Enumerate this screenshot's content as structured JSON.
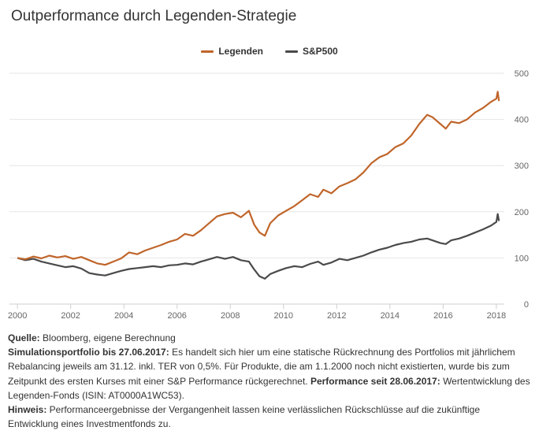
{
  "title": "Outperformance durch Legenden-Strategie",
  "colors": {
    "legenden": "#c0652a",
    "sp500": "#4a4a4a",
    "grid": "#e6e6e6"
  },
  "chart_data": {
    "type": "line",
    "title": "Outperformance durch Legenden-Strategie",
    "xlabel": "",
    "ylabel": "",
    "xlim": [
      1999.7,
      2018.3
    ],
    "ylim": [
      0,
      500
    ],
    "x_ticks": [
      "2000",
      "2002",
      "2004",
      "2006",
      "2008",
      "2010",
      "2012",
      "2014",
      "2016",
      "2018"
    ],
    "y_ticks": [
      "0",
      "100",
      "200",
      "300",
      "400",
      "500"
    ],
    "legend_position": "top-center",
    "grid": true,
    "series": [
      {
        "name": "Legenden",
        "color": "#c0652a",
        "points": [
          [
            2000.0,
            100
          ],
          [
            2000.3,
            97
          ],
          [
            2000.6,
            103
          ],
          [
            2000.9,
            99
          ],
          [
            2001.2,
            105
          ],
          [
            2001.5,
            101
          ],
          [
            2001.8,
            104
          ],
          [
            2002.1,
            98
          ],
          [
            2002.4,
            102
          ],
          [
            2002.7,
            95
          ],
          [
            2003.0,
            88
          ],
          [
            2003.3,
            85
          ],
          [
            2003.6,
            92
          ],
          [
            2003.9,
            99
          ],
          [
            2004.2,
            112
          ],
          [
            2004.5,
            108
          ],
          [
            2004.8,
            116
          ],
          [
            2005.1,
            122
          ],
          [
            2005.4,
            128
          ],
          [
            2005.7,
            135
          ],
          [
            2006.0,
            140
          ],
          [
            2006.3,
            152
          ],
          [
            2006.6,
            148
          ],
          [
            2006.9,
            160
          ],
          [
            2007.2,
            175
          ],
          [
            2007.5,
            190
          ],
          [
            2007.8,
            195
          ],
          [
            2008.1,
            198
          ],
          [
            2008.4,
            188
          ],
          [
            2008.7,
            202
          ],
          [
            2008.9,
            172
          ],
          [
            2009.1,
            155
          ],
          [
            2009.3,
            148
          ],
          [
            2009.5,
            175
          ],
          [
            2009.8,
            192
          ],
          [
            2010.1,
            202
          ],
          [
            2010.4,
            212
          ],
          [
            2010.7,
            225
          ],
          [
            2011.0,
            238
          ],
          [
            2011.3,
            232
          ],
          [
            2011.5,
            248
          ],
          [
            2011.8,
            240
          ],
          [
            2012.1,
            255
          ],
          [
            2012.4,
            262
          ],
          [
            2012.7,
            270
          ],
          [
            2013.0,
            285
          ],
          [
            2013.3,
            305
          ],
          [
            2013.6,
            318
          ],
          [
            2013.9,
            325
          ],
          [
            2014.2,
            340
          ],
          [
            2014.5,
            348
          ],
          [
            2014.8,
            365
          ],
          [
            2015.1,
            390
          ],
          [
            2015.4,
            410
          ],
          [
            2015.6,
            405
          ],
          [
            2015.9,
            390
          ],
          [
            2016.1,
            380
          ],
          [
            2016.3,
            395
          ],
          [
            2016.6,
            392
          ],
          [
            2016.9,
            400
          ],
          [
            2017.2,
            415
          ],
          [
            2017.5,
            425
          ],
          [
            2017.8,
            438
          ],
          [
            2018.0,
            445
          ],
          [
            2018.05,
            460
          ],
          [
            2018.1,
            440
          ]
        ]
      },
      {
        "name": "S&P500",
        "color": "#4a4a4a",
        "points": [
          [
            2000.0,
            100
          ],
          [
            2000.3,
            95
          ],
          [
            2000.6,
            98
          ],
          [
            2000.9,
            92
          ],
          [
            2001.2,
            88
          ],
          [
            2001.5,
            84
          ],
          [
            2001.8,
            80
          ],
          [
            2002.1,
            82
          ],
          [
            2002.4,
            77
          ],
          [
            2002.7,
            67
          ],
          [
            2003.0,
            64
          ],
          [
            2003.3,
            62
          ],
          [
            2003.6,
            67
          ],
          [
            2003.9,
            72
          ],
          [
            2004.2,
            76
          ],
          [
            2004.5,
            78
          ],
          [
            2004.8,
            80
          ],
          [
            2005.1,
            82
          ],
          [
            2005.4,
            80
          ],
          [
            2005.7,
            84
          ],
          [
            2006.0,
            85
          ],
          [
            2006.3,
            88
          ],
          [
            2006.6,
            86
          ],
          [
            2006.9,
            92
          ],
          [
            2007.2,
            97
          ],
          [
            2007.5,
            102
          ],
          [
            2007.8,
            98
          ],
          [
            2008.1,
            102
          ],
          [
            2008.4,
            95
          ],
          [
            2008.7,
            92
          ],
          [
            2008.9,
            75
          ],
          [
            2009.1,
            60
          ],
          [
            2009.3,
            55
          ],
          [
            2009.5,
            65
          ],
          [
            2009.8,
            72
          ],
          [
            2010.1,
            78
          ],
          [
            2010.4,
            82
          ],
          [
            2010.7,
            80
          ],
          [
            2011.0,
            87
          ],
          [
            2011.3,
            92
          ],
          [
            2011.5,
            85
          ],
          [
            2011.8,
            90
          ],
          [
            2012.1,
            98
          ],
          [
            2012.4,
            95
          ],
          [
            2012.7,
            100
          ],
          [
            2013.0,
            105
          ],
          [
            2013.3,
            112
          ],
          [
            2013.6,
            118
          ],
          [
            2013.9,
            122
          ],
          [
            2014.2,
            128
          ],
          [
            2014.5,
            132
          ],
          [
            2014.8,
            135
          ],
          [
            2015.1,
            140
          ],
          [
            2015.4,
            142
          ],
          [
            2015.6,
            138
          ],
          [
            2015.9,
            132
          ],
          [
            2016.1,
            130
          ],
          [
            2016.3,
            138
          ],
          [
            2016.6,
            142
          ],
          [
            2016.9,
            148
          ],
          [
            2017.2,
            155
          ],
          [
            2017.5,
            162
          ],
          [
            2017.8,
            170
          ],
          [
            2018.0,
            178
          ],
          [
            2018.05,
            195
          ],
          [
            2018.1,
            180
          ]
        ]
      }
    ]
  },
  "notes": {
    "source_label": "Quelle:",
    "source_text": " Bloomberg, eigene Berechnung",
    "sim_label": "Simulationsportfolio bis 27.06.2017:",
    "sim_text": " Es handelt sich hier um eine statische Rückrechnung des Portfolios mit jährlichem Rebalancing jeweils am 31.12. inkl. TER von 0,5%. Für Produkte, die am 1.1.2000 noch nicht existierten, wurde bis zum Zeitpunkt des ersten Kurses mit einer S&P Performance rückgerechnet.",
    "perf_label": " Performance seit 28.06.2017:",
    "perf_text": " Wertentwicklung des Legenden-Fonds (ISIN: AT0000A1WC53).",
    "hint_label": "Hinweis:",
    "hint_text": " Performanceergebnisse der Vergangenheit lassen keine verlässlichen Rückschlüsse auf die zukünftige Entwicklung eines Investmentfonds zu."
  }
}
